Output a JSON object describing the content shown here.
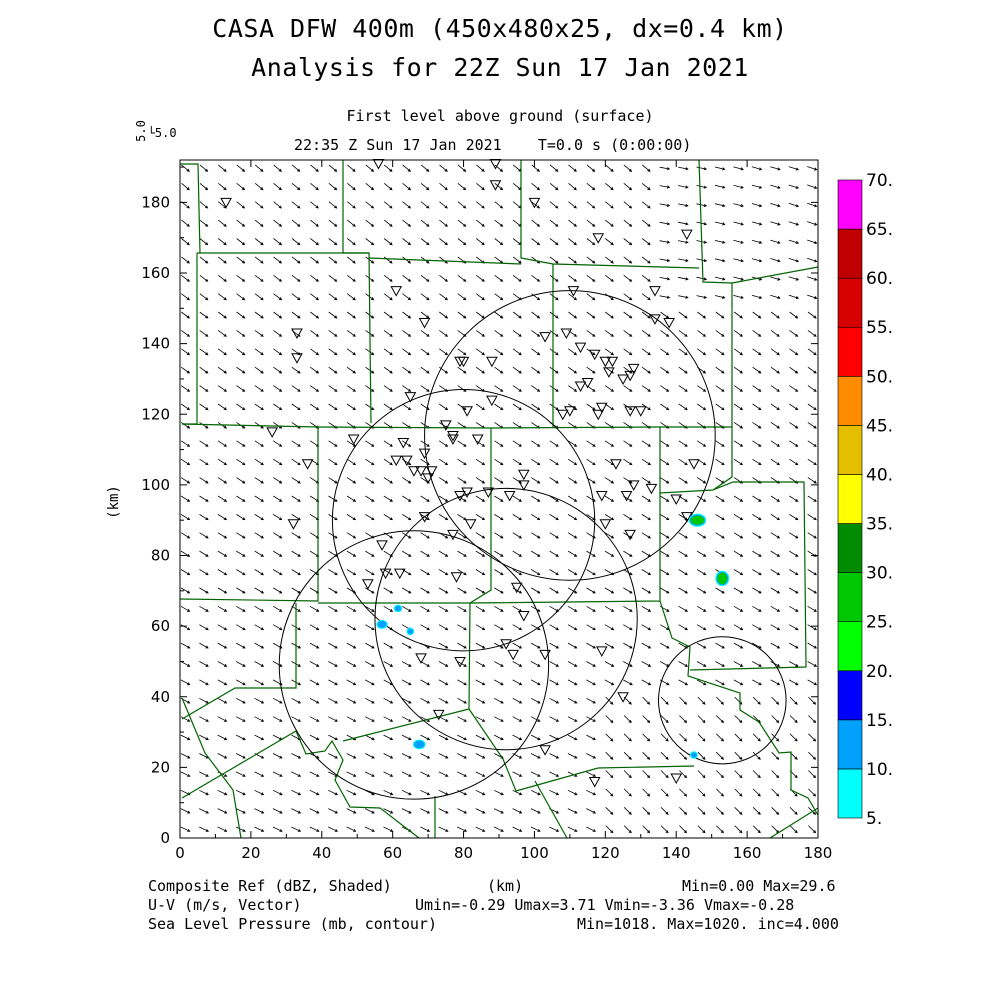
{
  "header": {
    "title_line1": "CASA DFW 400m (450x480x25, dx=0.4 km)",
    "title_line2": "Analysis for 22Z Sun 17 Jan 2021",
    "level": "First level above ground (surface)",
    "valid_time": "22:35 Z Sun 17 Jan 2021    T=0.0 s (0:00:00)",
    "ref_vector_label": "5.0"
  },
  "map": {
    "x_axis_label": "(km)",
    "y_axis_label": "(km)",
    "x_ticks": [
      "0",
      "20",
      "40",
      "60",
      "80",
      "100",
      "120",
      "140",
      "160",
      "180"
    ],
    "y_ticks": [
      "0",
      "20",
      "40",
      "60",
      "80",
      "100",
      "120",
      "140",
      "160",
      "180"
    ],
    "x_range_km": [
      0,
      180
    ],
    "y_range_km": [
      0,
      192
    ],
    "radar_rings_km": [
      {
        "cx": 66,
        "cy": 49,
        "r": 38
      },
      {
        "cx": 92,
        "cy": 62,
        "r": 37
      },
      {
        "cx": 80,
        "cy": 90,
        "r": 37
      },
      {
        "cx": 110,
        "cy": 114,
        "r": 41
      },
      {
        "cx": 153,
        "cy": 39,
        "r": 18
      }
    ],
    "stations_km": [
      [
        13,
        180
      ],
      [
        56,
        191
      ],
      [
        89,
        191
      ],
      [
        89,
        185
      ],
      [
        100,
        180
      ],
      [
        118,
        170
      ],
      [
        143,
        171
      ],
      [
        61,
        155
      ],
      [
        111,
        155
      ],
      [
        134,
        155
      ],
      [
        138,
        146
      ],
      [
        134,
        147
      ],
      [
        69,
        146
      ],
      [
        33,
        143
      ],
      [
        33,
        136
      ],
      [
        79,
        135
      ],
      [
        80,
        135
      ],
      [
        88,
        135
      ],
      [
        103,
        142
      ],
      [
        109,
        143
      ],
      [
        113,
        139
      ],
      [
        117,
        137
      ],
      [
        120,
        135
      ],
      [
        121,
        132
      ],
      [
        122,
        135
      ],
      [
        125,
        130
      ],
      [
        127,
        131
      ],
      [
        128,
        133
      ],
      [
        115,
        129
      ],
      [
        113,
        128
      ],
      [
        110,
        121
      ],
      [
        108,
        120
      ],
      [
        118,
        120
      ],
      [
        119,
        122
      ],
      [
        127,
        121
      ],
      [
        130,
        121
      ],
      [
        65,
        125
      ],
      [
        88,
        124
      ],
      [
        81,
        121
      ],
      [
        77,
        114
      ],
      [
        84,
        113
      ],
      [
        75,
        117
      ],
      [
        63,
        112
      ],
      [
        61,
        107
      ],
      [
        64,
        107
      ],
      [
        66,
        104
      ],
      [
        68,
        104
      ],
      [
        70,
        102
      ],
      [
        71,
        104
      ],
      [
        69,
        109
      ],
      [
        77,
        113
      ],
      [
        26,
        115
      ],
      [
        36,
        106
      ],
      [
        49,
        113
      ],
      [
        123,
        106
      ],
      [
        145,
        106
      ],
      [
        97,
        103
      ],
      [
        97,
        100
      ],
      [
        93,
        97
      ],
      [
        87,
        98
      ],
      [
        81,
        98
      ],
      [
        79,
        97
      ],
      [
        82,
        89
      ],
      [
        69,
        91
      ],
      [
        77,
        86
      ],
      [
        119,
        97
      ],
      [
        120,
        89
      ],
      [
        126,
        97
      ],
      [
        128,
        100
      ],
      [
        133,
        99
      ],
      [
        127,
        86
      ],
      [
        140,
        96
      ],
      [
        143,
        91
      ],
      [
        32,
        89
      ],
      [
        57,
        83
      ],
      [
        58,
        75
      ],
      [
        62,
        75
      ],
      [
        53,
        72
      ],
      [
        78,
        74
      ],
      [
        95,
        71
      ],
      [
        97,
        63
      ],
      [
        92,
        55
      ],
      [
        94,
        52
      ],
      [
        103,
        52
      ],
      [
        119,
        53
      ],
      [
        68,
        51
      ],
      [
        79,
        50
      ],
      [
        73,
        35
      ],
      [
        103,
        25
      ],
      [
        125,
        40
      ],
      [
        117,
        16
      ],
      [
        140,
        17
      ]
    ],
    "counties": {
      "stroke_color": "#006400"
    },
    "echoes_km": [
      {
        "x": 146,
        "y": 90,
        "dbz": 27,
        "rx": 1.9,
        "ry": 1.3
      },
      {
        "x": 153,
        "y": 73.5,
        "dbz": 27,
        "rx": 1.4,
        "ry": 1.6
      },
      {
        "x": 57,
        "y": 60.5,
        "dbz": 14,
        "rx": 1.3,
        "ry": 1.0
      },
      {
        "x": 61.5,
        "y": 65,
        "dbz": 10,
        "rx": 0.9,
        "ry": 0.8
      },
      {
        "x": 65,
        "y": 58.5,
        "dbz": 10,
        "rx": 0.8,
        "ry": 0.8
      },
      {
        "x": 67.5,
        "y": 26.5,
        "dbz": 14,
        "rx": 1.5,
        "ry": 1.1
      },
      {
        "x": 145,
        "y": 23.5,
        "dbz": 10,
        "rx": 0.8,
        "ry": 0.8
      }
    ]
  },
  "colorbar": {
    "levels": [
      "5.",
      "10.",
      "15.",
      "20.",
      "25.",
      "30.",
      "35.",
      "40.",
      "45.",
      "50.",
      "55.",
      "60.",
      "65.",
      "70."
    ],
    "colors": [
      "#00ffff",
      "#00a0ff",
      "#0000ff",
      "#00ff00",
      "#00c800",
      "#008c00",
      "#ffff00",
      "#e6be00",
      "#ff8c00",
      "#ff0000",
      "#d60000",
      "#c00000",
      "#ff00ff"
    ]
  },
  "footer": {
    "left1": "Composite Ref (dBZ, Shaded)",
    "left2": "U-V (m/s, Vector)",
    "left3": "Sea Level Pressure (mb, contour)",
    "center1": "(km)",
    "right1": "Min=0.00 Max=29.6",
    "right2": "Umin=-0.29 Umax=3.71 Vmin=-3.36 Vmax=-0.28",
    "right3": "Min=1018. Max=1020. inc=4.000"
  }
}
